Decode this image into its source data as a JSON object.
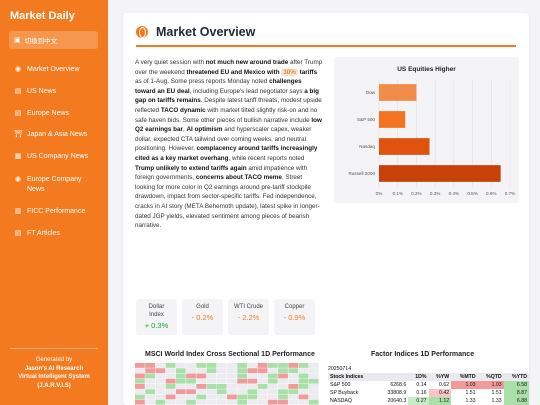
{
  "sidebar": {
    "brand": "Market Daily",
    "lang_icon": "language-icon",
    "lang_label": "切換到中文",
    "items": [
      {
        "label": "Market Overview",
        "icon": "globe-icon",
        "glyph": "◉"
      },
      {
        "label": "US News",
        "icon": "news-icon",
        "glyph": "▤"
      },
      {
        "label": "Europe News",
        "icon": "news-icon",
        "glyph": "▤"
      },
      {
        "label": "Japan & Asia News",
        "icon": "temple-icon",
        "glyph": "⛩"
      },
      {
        "label": "US Company News",
        "icon": "building-icon",
        "glyph": "▦"
      },
      {
        "label": "Europe Company News",
        "icon": "globe-icon",
        "glyph": "◉"
      },
      {
        "label": "FICC Performance",
        "icon": "chart-icon",
        "glyph": "▥"
      },
      {
        "label": "FT Articles",
        "icon": "article-icon",
        "glyph": "▤"
      }
    ],
    "generated_by": "Generated by",
    "generator_name": "Jason's AI Research",
    "generator_sub": "Virtual Intelligent System",
    "generator_acronym": "(J.A.R.V.I.S)"
  },
  "main": {
    "title": "Market Overview",
    "article": {
      "p1": "A very quiet session with ",
      "b1": "not much new around trade",
      "p2": " after Trump over the weekend ",
      "b2": "threatened EU and Mexico with",
      "hl": "30%",
      "b3": "tariffs",
      "p3": " as of 1-Aug. Some press reports Monday noted ",
      "b4": "challenges toward an EU deal",
      "p4": ", including Europe's lead negotiator says ",
      "b5": "a big gap on tariffs remains",
      "p5": ". Despite latest tariff threats, modest upside reflected ",
      "b6": "TACO dynamic",
      "p6": " with market tilted slightly risk-on and no safe haven bids. Some other pieces of bullish narrative include ",
      "b7": "low Q2 earnings bar",
      "p7": ", ",
      "b8": "AI optimism",
      "p8": " and hyperscaler capex, weaker dollar, expected CTA tailwind over coming weeks, and neutral positioning. However, ",
      "b9": "complacency around tariffs increasingly cited as a key market overhang",
      "p9": ", while recent reports noted ",
      "b10": "Trump unlikely to extend tariffs again",
      "p10": " amid impatience with foreign governments, ",
      "b11": "concerns about TACO meme",
      "p11": ". Street looking for more color in Q2 earnings around pre-tariff stockpile drawdown, impact from sector-specific tariffs. Fed independence, cracks in AI story (META Behemoth update), latest spike in longer-dated JGP yields, elevated sentiment among pieces of bearish narrative."
    },
    "stats": [
      {
        "label": "Dollar Index",
        "value": "+ 0.3%",
        "positive": true
      },
      {
        "label": "Gold",
        "value": "- 0.2%",
        "positive": false
      },
      {
        "label": "WTI Crude",
        "value": "- 2.2%",
        "positive": false
      },
      {
        "label": "Copper",
        "value": "- 0.9%",
        "positive": false
      }
    ],
    "msci_title": "MSCI World Index Cross Sectional 1D Performance",
    "factor_title": "Factor Indices 1D Performance",
    "factor_table": {
      "date": "20250714",
      "headers": [
        "Stock Indices",
        "",
        "1D%",
        "%YW",
        "%MTD",
        "%QTD",
        "%YTD"
      ],
      "rows": [
        {
          "name": "S&P 500",
          "level": "6268.6",
          "d1": "0.14",
          "yw": "0.62",
          "mtd": "1.03",
          "qtd": "1.03",
          "ytd": "6.58"
        },
        {
          "name": "SP Buyback",
          "level": "33808.9",
          "d1": "0.16",
          "yw": "0.42",
          "mtd": "1.51",
          "qtd": "1.51",
          "ytd": "8.87"
        },
        {
          "name": "NASDAQ",
          "level": "20640.3",
          "d1": "0.27",
          "yw": "1.12",
          "mtd": "1.33",
          "qtd": "1.33",
          "ytd": "6.88"
        }
      ]
    }
  },
  "chart_data": {
    "type": "bar",
    "orientation": "horizontal",
    "title": "US Equities Higher",
    "categories": [
      "Dow",
      "S&P 500",
      "Nasdaq",
      "Russell 2000"
    ],
    "values": [
      0.2,
      0.14,
      0.27,
      0.65
    ],
    "xlim": [
      0,
      0.7
    ],
    "xticks": [
      "0%",
      "0.1%",
      "0.2%",
      "0.3%",
      "0.4%",
      "0.5%",
      "0.6%",
      "0.7%"
    ],
    "colors": [
      "#f28c4a",
      "#f47321",
      "#e0530e",
      "#c8410a"
    ],
    "grid": true
  },
  "msci_grid": {
    "up_color": "#a9e0a9",
    "down_color": "#f29a9a",
    "pattern": [
      "ddnunnuunnunduudun",
      "nddnunnunnuddnuunn",
      "dunnuddnnnunnudnun",
      "unnduunnnnddnunnuu",
      "dnnunnduunnnunndun",
      "nunnddnnunnunnuunn",
      "unndnnunnduunnundn",
      "dnunnunnnnunnddnnu"
    ]
  }
}
